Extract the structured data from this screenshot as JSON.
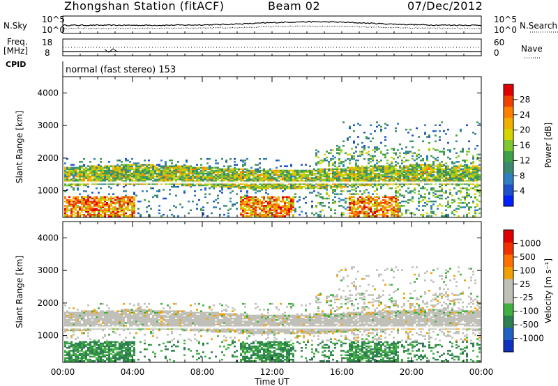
{
  "header": {
    "station": "Zhongshan Station (fitACF)",
    "beam": "Beam 02",
    "date": "07/Dec/2012"
  },
  "strips": {
    "nsky_label": "N.Sky",
    "nsearch_label": "N.Search",
    "nsky_ticks": [
      "10^5",
      "10^0"
    ],
    "nsearch_ticks": [
      "10^5",
      "10^0"
    ],
    "freq_label": "Freq.",
    "freq_unit": "[MHz]",
    "freq_ticks": [
      "18",
      "8"
    ],
    "nave_label": "Nave",
    "nave_ticks": [
      "60",
      "0"
    ],
    "cpid_label": "CPID",
    "cpid_value": "normal (fast stereo) 153"
  },
  "chart_data": [
    {
      "type": "heatmap",
      "name": "power",
      "ylabel": "Slant Range [km]",
      "xlabel": "",
      "y_ticks": [
        "1000",
        "2000",
        "3000",
        "4000"
      ],
      "ylim": [
        180,
        4500
      ],
      "colorbar_label": "Power [dB]",
      "colorbar_ticks": [
        "28",
        "24",
        "20",
        "16",
        "12",
        "8",
        "4"
      ],
      "colorbar_colors": [
        "#0020ff",
        "#2050c8",
        "#2f7fc0",
        "#3c8a6e",
        "#3fa04a",
        "#7fc830",
        "#d4d400",
        "#f0b000",
        "#ff8000",
        "#f04000",
        "#e00000"
      ]
    },
    {
      "type": "heatmap",
      "name": "velocity",
      "ylabel": "Slant Range [km]",
      "xlabel": "Time UT",
      "y_ticks": [
        "1000",
        "2000",
        "3000",
        "4000"
      ],
      "ylim": [
        180,
        4500
      ],
      "x_ticks": [
        "00:00",
        "04:00",
        "08:00",
        "12:00",
        "16:00",
        "20:00",
        "00:00"
      ],
      "colorbar_label": "Velocity [m s⁻¹]",
      "colorbar_ticks": [
        "1000",
        "500",
        "100",
        "25",
        "-25",
        "-100",
        "-500",
        "-1000"
      ],
      "colorbar_colors": [
        "#1030c0",
        "#2060c0",
        "#2f8050",
        "#40b040",
        "#c0c0b8",
        "#c0c0b8",
        "#f0a000",
        "#ff7000",
        "#f03000",
        "#e00000"
      ]
    }
  ]
}
